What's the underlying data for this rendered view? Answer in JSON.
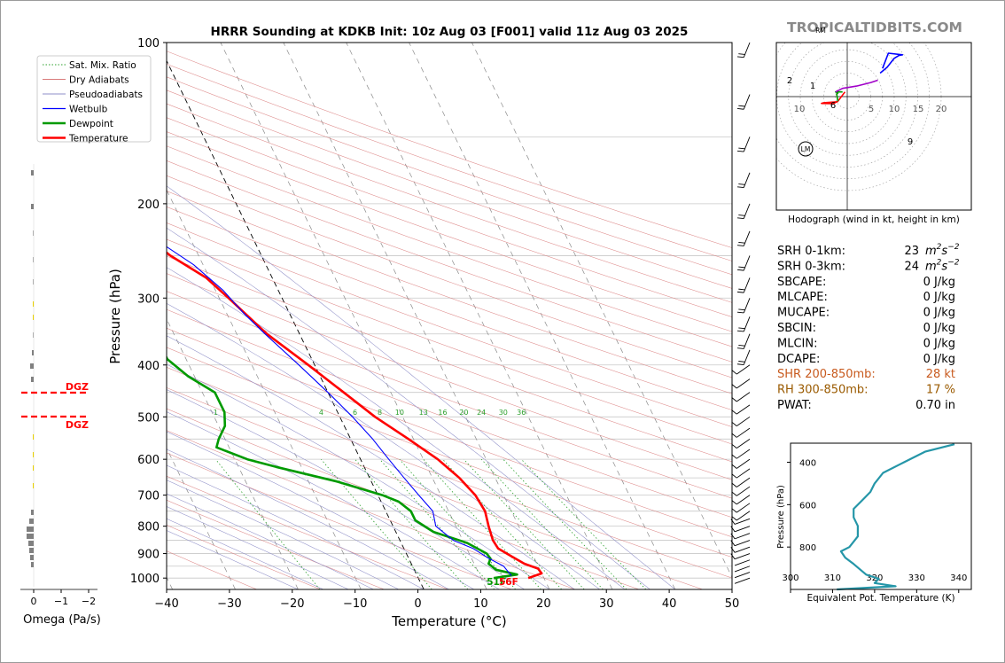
{
  "chart_data": [
    {
      "type": "skew-t",
      "title": "HRRR Sounding at KDKB Init: 10z Aug 03 [F001] valid 11z Aug 03 2025",
      "xlabel": "Temperature (°C)",
      "ylabel": "Pressure (hPa)",
      "xlim": [
        -40,
        50
      ],
      "ylim": [
        1050,
        100
      ],
      "y_scale": "log",
      "x_ticks": [
        -40,
        -30,
        -20,
        -10,
        0,
        10,
        20,
        30,
        40,
        50
      ],
      "x_tick_labels": [
        "−40",
        "−30",
        "−20",
        "−10",
        "0",
        "10",
        "20",
        "30",
        "40",
        "50"
      ],
      "y_ticks": [
        100,
        200,
        300,
        400,
        500,
        600,
        700,
        800,
        900,
        1000
      ],
      "legend_placement": "top-left",
      "legend": [
        {
          "label": "Sat. Mix. Ratio",
          "color": "#2ca02c",
          "style": "dotted"
        },
        {
          "label": "Dry Adiabats",
          "color": "#d97a7a",
          "style": "solid"
        },
        {
          "label": "Pseudoadiabats",
          "color": "#8f8fc8",
          "style": "solid"
        },
        {
          "label": "Wetbulb",
          "color": "#0000ff",
          "style": "solid"
        },
        {
          "label": "Dewpoint",
          "color": "#009a00",
          "style": "solid"
        },
        {
          "label": "Temperature",
          "color": "#ff0000",
          "style": "solid"
        }
      ],
      "mixing_ratio_labels": [
        "1",
        "4",
        "6",
        "8",
        "10",
        "13",
        "16",
        "20",
        "24",
        "30",
        "36"
      ],
      "surface_labels": {
        "dewpoint": "51F",
        "temperature": "56F"
      },
      "series": [
        {
          "name": "Temperature",
          "color": "#ff0000",
          "points": [
            [
              1000,
              17.5
            ],
            [
              980,
              20
            ],
            [
              960,
              19.8
            ],
            [
              940,
              18
            ],
            [
              910,
              16.5
            ],
            [
              880,
              15
            ],
            [
              850,
              14.8
            ],
            [
              800,
              15.2
            ],
            [
              750,
              15.8
            ],
            [
              700,
              15.5
            ],
            [
              650,
              14.3
            ],
            [
              600,
              12.3
            ],
            [
              550,
              9.2
            ],
            [
              500,
              5.6
            ],
            [
              450,
              2.5
            ],
            [
              400,
              -1
            ],
            [
              350,
              -5.2
            ],
            [
              300,
              -8.5
            ],
            [
              275,
              -10.5
            ],
            [
              250,
              -14.5
            ],
            [
              225,
              -17.5
            ],
            [
              200,
              -16.8
            ],
            [
              170,
              -14.5
            ],
            [
              150,
              -13
            ],
            [
              125,
              -11.5
            ],
            [
              100,
              -8.5
            ]
          ]
        },
        {
          "name": "Dewpoint",
          "color": "#009a00",
          "points": [
            [
              1000,
              12
            ],
            [
              985,
              16
            ],
            [
              965,
              13
            ],
            [
              940,
              12.3
            ],
            [
              920,
              13
            ],
            [
              900,
              12.8
            ],
            [
              860,
              10.5
            ],
            [
              820,
              6
            ],
            [
              780,
              4
            ],
            [
              750,
              4
            ],
            [
              720,
              2.8
            ],
            [
              700,
              0.7
            ],
            [
              660,
              -5.5
            ],
            [
              620,
              -14
            ],
            [
              600,
              -18
            ],
            [
              570,
              -22
            ],
            [
              550,
              -21
            ],
            [
              520,
              -19
            ],
            [
              490,
              -18
            ],
            [
              450,
              -18
            ],
            [
              420,
              -21
            ],
            [
              390,
              -23
            ],
            [
              360,
              -23
            ],
            [
              330,
              -22.5
            ],
            [
              300,
              -19.8
            ],
            [
              250,
              -16.5
            ],
            [
              220,
              -16.5
            ],
            [
              200,
              -19
            ],
            [
              175,
              -21.5
            ],
            [
              150,
              -26
            ],
            [
              125,
              -25
            ],
            [
              100,
              -21
            ]
          ]
        },
        {
          "name": "Wetbulb",
          "color": "#0000ff",
          "points": [
            [
              990,
              15
            ],
            [
              950,
              14.5
            ],
            [
              920,
              12.8
            ],
            [
              880,
              11
            ],
            [
              850,
              8.5
            ],
            [
              800,
              6.8
            ],
            [
              750,
              7.5
            ],
            [
              700,
              6.5
            ],
            [
              650,
              5.5
            ],
            [
              600,
              4.5
            ],
            [
              550,
              3.5
            ],
            [
              500,
              2
            ],
            [
              450,
              0
            ],
            [
              400,
              -2.5
            ],
            [
              350,
              -5.5
            ],
            [
              320,
              -7.3
            ],
            [
              290,
              -8.8
            ],
            [
              260,
              -11.5
            ],
            [
              240,
              -14.5
            ],
            [
              200,
              -16.8
            ],
            [
              170,
              -14.5
            ],
            [
              150,
              -13
            ],
            [
              125,
              -11.5
            ],
            [
              100,
              -8.5
            ]
          ]
        }
      ]
    },
    {
      "type": "line",
      "title": "Omega (Pa/s)",
      "xlabel": "Omega (Pa/s)",
      "x_ticks": [
        0,
        -1,
        -2
      ],
      "x_tick_labels": [
        "0",
        "−1",
        "−2"
      ],
      "dgz_label_upper": "DGZ",
      "dgz_label_lower": "DGZ",
      "dgz_levels_hpa": [
        453,
        500
      ]
    },
    {
      "type": "hodograph",
      "caption": "Hodograph (wind in kt, height in km)",
      "ring_labels_left": [
        "10"
      ],
      "ring_labels_right": [
        "5",
        "10",
        "15",
        "20"
      ],
      "point_labels": [
        "2",
        "1",
        "6",
        "9"
      ],
      "storm_motion_labels": {
        "left_mover": "LM",
        "right_mover": "RM"
      },
      "series": [
        {
          "name": "0-1 km",
          "color": "#ff0000",
          "points": [
            [
              -4,
              2.2
            ],
            [
              -10,
              2.6
            ],
            [
              -11,
              2.9
            ],
            [
              -6,
              3
            ]
          ]
        },
        {
          "name": "1-3 km",
          "color": "#ff0000",
          "points": [
            [
              -6,
              3
            ],
            [
              -4,
              2
            ],
            [
              -1,
              -2
            ]
          ]
        },
        {
          "name": "3-6 km",
          "color": "#009a00",
          "points": [
            [
              -4,
              2
            ],
            [
              -4.5,
              -1
            ],
            [
              -4,
              -1.5
            ],
            [
              -5,
              -2
            ],
            [
              -2,
              -2
            ]
          ]
        },
        {
          "name": "6-9 km",
          "color": "#a000c8",
          "points": [
            [
              -5,
              -2
            ],
            [
              -2,
              -3.5
            ],
            [
              4,
              -4.5
            ],
            [
              10,
              -6
            ],
            [
              13,
              -7
            ]
          ]
        },
        {
          "name": "9+ km",
          "color": "#0000ff",
          "points": [
            [
              14,
              -10
            ],
            [
              17,
              -12.5
            ],
            [
              20,
              -16.3
            ],
            [
              22,
              -17.5
            ],
            [
              23.5,
              -17.8
            ],
            [
              17.5,
              -18.5
            ],
            [
              15,
              -12
            ]
          ]
        }
      ]
    },
    {
      "type": "line",
      "title": "Equivalent Pot. Temperature",
      "xlabel": "Equivalent Pot. Temperature (K)",
      "ylabel": "Pressure (hPa)",
      "xlim": [
        300,
        343
      ],
      "ylim": [
        1000,
        310
      ],
      "x_ticks": [
        300,
        310,
        320,
        330,
        340
      ],
      "y_ticks": [
        400,
        600,
        800
      ],
      "series": [
        {
          "name": "Theta-e",
          "color": "#2596a8",
          "points": [
            [
              1000,
              311
            ],
            [
              985,
              325
            ],
            [
              970,
              320
            ],
            [
              950,
              321
            ],
            [
              930,
              318
            ],
            [
              880,
              315
            ],
            [
              850,
              313
            ],
            [
              820,
              312
            ],
            [
              800,
              314
            ],
            [
              750,
              316
            ],
            [
              700,
              316
            ],
            [
              660,
              315
            ],
            [
              620,
              315
            ],
            [
              580,
              317
            ],
            [
              540,
              319
            ],
            [
              500,
              320
            ],
            [
              450,
              322
            ],
            [
              400,
              327
            ],
            [
              350,
              332
            ],
            [
              315,
              339
            ]
          ]
        }
      ]
    }
  ],
  "stats": [
    {
      "label": "SRH 0-1km:",
      "value": "23",
      "unit": "m2s-2",
      "color": "#000000"
    },
    {
      "label": "SRH 0-3km:",
      "value": "24",
      "unit": "m2s-2",
      "color": "#000000"
    },
    {
      "label": "SBCAPE:",
      "value": "0 J/kg",
      "color": "#000000"
    },
    {
      "label": "MLCAPE:",
      "value": "0 J/kg",
      "color": "#000000"
    },
    {
      "label": "MUCAPE:",
      "value": "0 J/kg",
      "color": "#000000"
    },
    {
      "label": "SBCIN:",
      "value": "0 J/kg",
      "color": "#000000"
    },
    {
      "label": "MLCIN:",
      "value": "0 J/kg",
      "color": "#000000"
    },
    {
      "label": "DCAPE:",
      "value": "0 J/kg",
      "color": "#000000"
    },
    {
      "label": "SHR 200-850mb:",
      "value": "28 kt",
      "color": "#c85a1e"
    },
    {
      "label": "RH 300-850mb:",
      "value": "17 %",
      "color": "#9a5a00"
    },
    {
      "label": "PWAT:",
      "value": "0.70 in",
      "color": "#000000"
    }
  ],
  "srh_unit_parts": {
    "base": "m",
    "exp1": "2",
    "mid": "s",
    "exp2": "−2"
  },
  "watermark": "TROPICALTIDBITS.COM",
  "colors": {
    "temperature": "#ff0000",
    "dewpoint": "#009a00",
    "wetbulb": "#0000ff",
    "theta_e": "#2596a8",
    "dgz": "#ff0000"
  }
}
